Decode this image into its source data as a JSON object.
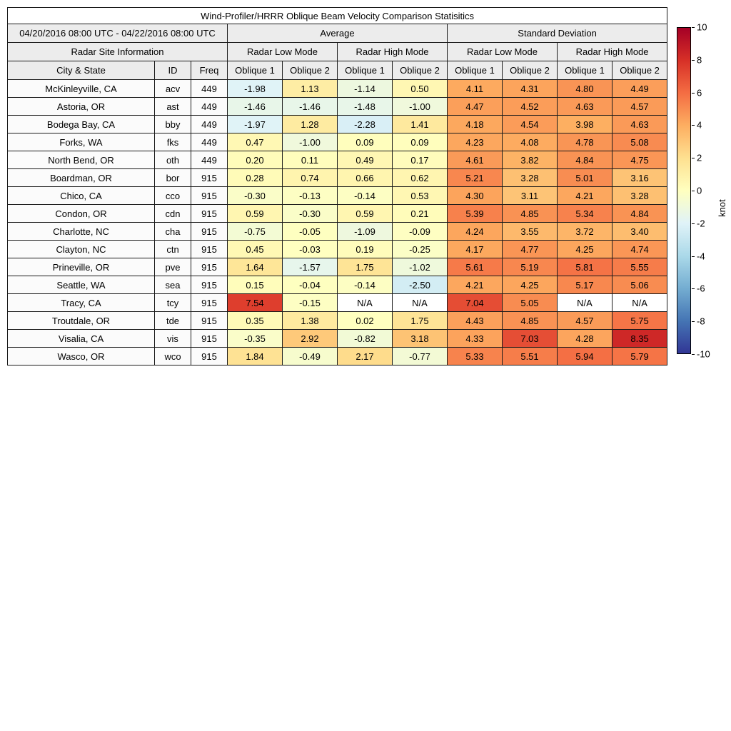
{
  "chart_data": {
    "type": "table",
    "header": {
      "title": "Wind-Profiler/HRRR Oblique Beam Velocity Comparison Statisitics",
      "date_range": "04/20/2016 08:00 UTC - 04/22/2016 08:00 UTC",
      "site_info": "Radar Site Information",
      "groups": [
        "Average",
        "Standard Deviation"
      ],
      "modes": [
        "Radar Low Mode",
        "Radar High Mode"
      ],
      "columns": [
        "City & State",
        "ID",
        "Freq"
      ],
      "oblique": [
        "Oblique 1",
        "Oblique 2"
      ]
    },
    "rows": [
      {
        "city": "McKinleyville, CA",
        "id": "acv",
        "freq": "449",
        "values": [
          -1.98,
          1.13,
          -1.14,
          0.5,
          4.11,
          4.31,
          4.8,
          4.49
        ]
      },
      {
        "city": "Astoria, OR",
        "id": "ast",
        "freq": "449",
        "values": [
          -1.46,
          -1.46,
          -1.48,
          -1.0,
          4.47,
          4.52,
          4.63,
          4.57
        ]
      },
      {
        "city": "Bodega Bay, CA",
        "id": "bby",
        "freq": "449",
        "values": [
          -1.97,
          1.28,
          -2.28,
          1.41,
          4.18,
          4.54,
          3.98,
          4.63
        ]
      },
      {
        "city": "Forks, WA",
        "id": "fks",
        "freq": "449",
        "values": [
          0.47,
          -1.0,
          0.09,
          0.09,
          4.23,
          4.08,
          4.78,
          5.08
        ]
      },
      {
        "city": "North Bend, OR",
        "id": "oth",
        "freq": "449",
        "values": [
          0.2,
          0.11,
          0.49,
          0.17,
          4.61,
          3.82,
          4.84,
          4.75
        ]
      },
      {
        "city": "Boardman, OR",
        "id": "bor",
        "freq": "915",
        "values": [
          0.28,
          0.74,
          0.66,
          0.62,
          5.21,
          3.28,
          5.01,
          3.16
        ]
      },
      {
        "city": "Chico, CA",
        "id": "cco",
        "freq": "915",
        "values": [
          -0.3,
          -0.13,
          -0.14,
          0.53,
          4.3,
          3.11,
          4.21,
          3.28
        ]
      },
      {
        "city": "Condon, OR",
        "id": "cdn",
        "freq": "915",
        "values": [
          0.59,
          -0.3,
          0.59,
          0.21,
          5.39,
          4.85,
          5.34,
          4.84
        ]
      },
      {
        "city": "Charlotte, NC",
        "id": "cha",
        "freq": "915",
        "values": [
          -0.75,
          -0.05,
          -1.09,
          -0.09,
          4.24,
          3.55,
          3.72,
          3.4
        ]
      },
      {
        "city": "Clayton, NC",
        "id": "ctn",
        "freq": "915",
        "values": [
          0.45,
          -0.03,
          0.19,
          -0.25,
          4.17,
          4.77,
          4.25,
          4.74
        ]
      },
      {
        "city": "Prineville, OR",
        "id": "pve",
        "freq": "915",
        "values": [
          1.64,
          -1.57,
          1.75,
          -1.02,
          5.61,
          5.19,
          5.81,
          5.55
        ]
      },
      {
        "city": "Seattle, WA",
        "id": "sea",
        "freq": "915",
        "values": [
          0.15,
          -0.04,
          -0.14,
          -2.5,
          4.21,
          4.25,
          5.17,
          5.06
        ]
      },
      {
        "city": "Tracy, CA",
        "id": "tcy",
        "freq": "915",
        "values": [
          7.54,
          -0.15,
          "N/A",
          "N/A",
          7.04,
          5.05,
          "N/A",
          "N/A"
        ]
      },
      {
        "city": "Troutdale, OR",
        "id": "tde",
        "freq": "915",
        "values": [
          0.35,
          1.38,
          0.02,
          1.75,
          4.43,
          4.85,
          4.57,
          5.75
        ]
      },
      {
        "city": "Visalia, CA",
        "id": "vis",
        "freq": "915",
        "values": [
          -0.35,
          2.92,
          -0.82,
          3.18,
          4.33,
          7.03,
          4.28,
          8.35
        ]
      },
      {
        "city": "Wasco, OR",
        "id": "wco",
        "freq": "915",
        "values": [
          1.84,
          -0.49,
          2.17,
          -0.77,
          5.33,
          5.51,
          5.94,
          5.79
        ]
      }
    ],
    "colormap": [
      "#313695",
      "#4575b4",
      "#74add1",
      "#abd9e9",
      "#e0f3f8",
      "#ffffbf",
      "#fee090",
      "#fdae61",
      "#f46d43",
      "#d73027",
      "#a50026"
    ],
    "colorbar": {
      "min": -10,
      "max": 10,
      "label": "knot",
      "ticks": [
        10,
        8,
        6,
        4,
        2,
        0,
        -2,
        -4,
        -6,
        -8,
        -10
      ]
    }
  }
}
